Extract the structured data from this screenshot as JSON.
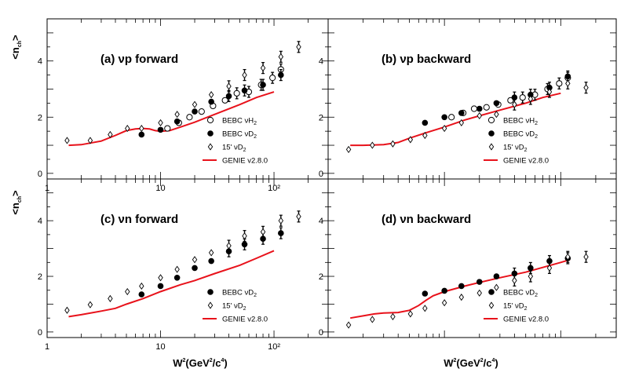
{
  "figure": {
    "y_axis_title": "<n",
    "y_axis_title_sub": "ch",
    "y_axis_title_end": ">",
    "x_axis_title": "W",
    "x_axis_title_sup": "2",
    "x_axis_title_rest": "(GeV",
    "x_axis_title_sup2": "2",
    "x_axis_title_rest2": "/c",
    "x_axis_title_sup3": "4",
    "x_axis_title_end": ")"
  },
  "legend_labels": {
    "bebc_h2": "BEBC νH",
    "bebc_d2": "BEBC νD",
    "ft15_d2": "15' νD",
    "sub2": "2",
    "genie": "GENIE v2.8.0"
  },
  "chart_data": [
    {
      "type": "scatter",
      "title": "(a) νp forward",
      "xscale": "log",
      "xlim": [
        1,
        300
      ],
      "ylim": [
        -0.2,
        5.5
      ],
      "yticks": [
        0,
        2,
        4
      ],
      "xticks": [
        1,
        10,
        100
      ],
      "xtick_labels": [
        "1",
        "10",
        "10²"
      ],
      "series": [
        {
          "name": "BEBC νH2",
          "marker": "open-circle",
          "points": [
            [
              11.5,
              1.6
            ],
            [
              14.5,
              1.8
            ],
            [
              18,
              2.0
            ],
            [
              23,
              2.2
            ],
            [
              29,
              2.4
            ],
            [
              37,
              2.6
            ],
            [
              47,
              2.85
            ],
            [
              60,
              2.9
            ],
            [
              77,
              3.15
            ],
            [
              97,
              3.4
            ],
            [
              115,
              3.7
            ]
          ]
        },
        {
          "name": "BEBC νD2",
          "marker": "filled-circle",
          "points": [
            [
              6.8,
              1.38
            ],
            [
              10,
              1.55
            ],
            [
              14,
              1.85
            ],
            [
              20,
              2.2
            ],
            [
              28,
              2.55
            ],
            [
              40,
              2.75
            ],
            [
              55,
              2.95
            ],
            [
              80,
              3.15
            ],
            [
              115,
              3.5
            ]
          ]
        },
        {
          "name": "15' νD2",
          "marker": "open-diamond",
          "points": [
            [
              1.5,
              1.17
            ],
            [
              2.4,
              1.17
            ],
            [
              3.6,
              1.38
            ],
            [
              5.1,
              1.6
            ],
            [
              6.8,
              1.6
            ],
            [
              10,
              1.8
            ],
            [
              14,
              2.1
            ],
            [
              20,
              2.45
            ],
            [
              28,
              2.8
            ],
            [
              40,
              3.1
            ],
            [
              55,
              3.5
            ],
            [
              80,
              3.75
            ],
            [
              115,
              4.15
            ],
            [
              165,
              4.5
            ]
          ]
        }
      ],
      "genie": {
        "name": "GENIE v2.8.0",
        "points": [
          [
            1.55,
            1.0
          ],
          [
            2,
            1.02
          ],
          [
            3,
            1.15
          ],
          [
            4,
            1.35
          ],
          [
            5,
            1.52
          ],
          [
            6,
            1.58
          ],
          [
            7,
            1.6
          ],
          [
            8,
            1.58
          ],
          [
            9,
            1.52
          ],
          [
            10,
            1.5
          ],
          [
            12,
            1.52
          ],
          [
            15,
            1.65
          ],
          [
            20,
            1.82
          ],
          [
            30,
            2.1
          ],
          [
            50,
            2.45
          ],
          [
            70,
            2.7
          ],
          [
            100,
            2.9
          ]
        ]
      },
      "legend": [
        "BEBC νH2",
        "BEBC νD2",
        "15' νD2",
        "GENIE v2.8.0"
      ]
    },
    {
      "type": "scatter",
      "title": "(b) νp backward",
      "xscale": "log",
      "xlim": [
        1,
        300
      ],
      "ylim": [
        -0.2,
        5.5
      ],
      "yticks": [
        0,
        2,
        4
      ],
      "xticks": [
        1,
        10,
        100
      ],
      "xtick_labels": [],
      "series": [
        {
          "name": "BEBC νH2",
          "marker": "open-circle",
          "points": [
            [
              11.5,
              2.0
            ],
            [
              14.5,
              2.15
            ],
            [
              18,
              2.3
            ],
            [
              23,
              2.35
            ],
            [
              29,
              2.45
            ],
            [
              37,
              2.6
            ],
            [
              47,
              2.7
            ],
            [
              60,
              2.8
            ],
            [
              77,
              3.0
            ],
            [
              97,
              3.2
            ],
            [
              115,
              3.4
            ]
          ]
        },
        {
          "name": "BEBC νD2",
          "marker": "filled-circle",
          "points": [
            [
              6.8,
              1.8
            ],
            [
              10,
              2.0
            ],
            [
              14,
              2.15
            ],
            [
              20,
              2.3
            ],
            [
              28,
              2.5
            ],
            [
              40,
              2.7
            ],
            [
              55,
              2.8
            ],
            [
              80,
              3.05
            ],
            [
              115,
              3.45
            ]
          ]
        },
        {
          "name": "15' νD2",
          "marker": "open-diamond",
          "points": [
            [
              1.5,
              0.85
            ],
            [
              2.4,
              1.0
            ],
            [
              3.6,
              1.05
            ],
            [
              5.1,
              1.2
            ],
            [
              6.8,
              1.35
            ],
            [
              10,
              1.6
            ],
            [
              14,
              1.8
            ],
            [
              20,
              2.05
            ],
            [
              28,
              2.1
            ],
            [
              40,
              2.45
            ],
            [
              55,
              2.65
            ],
            [
              80,
              2.9
            ],
            [
              115,
              3.2
            ],
            [
              165,
              3.05
            ]
          ]
        }
      ],
      "genie": {
        "name": "GENIE v2.8.0",
        "points": [
          [
            1.55,
            1.0
          ],
          [
            2,
            1.0
          ],
          [
            3,
            1.02
          ],
          [
            4,
            1.1
          ],
          [
            5,
            1.25
          ],
          [
            7,
            1.45
          ],
          [
            10,
            1.65
          ],
          [
            15,
            1.9
          ],
          [
            20,
            2.05
          ],
          [
            30,
            2.25
          ],
          [
            50,
            2.5
          ],
          [
            70,
            2.7
          ],
          [
            100,
            2.85
          ]
        ]
      },
      "legend": [
        "BEBC νH2",
        "BEBC νD2",
        "15' νD2",
        "GENIE v2.8.0"
      ]
    },
    {
      "type": "scatter",
      "title": "(c) νn forward",
      "xscale": "log",
      "xlim": [
        1,
        300
      ],
      "ylim": [
        -0.2,
        5.5
      ],
      "yticks": [
        0,
        2,
        4
      ],
      "xticks": [
        1,
        10,
        100
      ],
      "xtick_labels": [
        "1",
        "10",
        "10²"
      ],
      "series": [
        {
          "name": "BEBC νD2",
          "marker": "filled-circle",
          "points": [
            [
              6.8,
              1.35
            ],
            [
              10,
              1.65
            ],
            [
              14,
              1.95
            ],
            [
              20,
              2.3
            ],
            [
              28,
              2.55
            ],
            [
              40,
              2.9
            ],
            [
              55,
              3.15
            ],
            [
              80,
              3.35
            ],
            [
              115,
              3.55
            ]
          ]
        },
        {
          "name": "15' νD2",
          "marker": "open-diamond",
          "points": [
            [
              1.5,
              0.78
            ],
            [
              2.4,
              0.98
            ],
            [
              3.6,
              1.2
            ],
            [
              5.1,
              1.45
            ],
            [
              6.8,
              1.65
            ],
            [
              10,
              1.95
            ],
            [
              14,
              2.25
            ],
            [
              20,
              2.6
            ],
            [
              28,
              2.85
            ],
            [
              40,
              3.1
            ],
            [
              55,
              3.45
            ],
            [
              80,
              3.6
            ],
            [
              115,
              4.0
            ],
            [
              165,
              4.15
            ]
          ]
        }
      ],
      "genie": {
        "name": "GENIE v2.8.0",
        "points": [
          [
            1.55,
            0.55
          ],
          [
            2,
            0.62
          ],
          [
            3,
            0.75
          ],
          [
            4,
            0.85
          ],
          [
            5,
            1.0
          ],
          [
            7,
            1.2
          ],
          [
            10,
            1.45
          ],
          [
            15,
            1.7
          ],
          [
            20,
            1.85
          ],
          [
            30,
            2.1
          ],
          [
            50,
            2.4
          ],
          [
            70,
            2.65
          ],
          [
            100,
            2.92
          ]
        ]
      },
      "legend": [
        "BEBC νD2",
        "15' νD2",
        "GENIE v2.8.0"
      ]
    },
    {
      "type": "scatter",
      "title": "(d) νn backward",
      "xscale": "log",
      "xlim": [
        1,
        300
      ],
      "ylim": [
        -0.2,
        5.5
      ],
      "yticks": [
        0,
        2,
        4
      ],
      "xticks": [
        1,
        10,
        100
      ],
      "xtick_labels": [],
      "series": [
        {
          "name": "BEBC νD2",
          "marker": "filled-circle",
          "points": [
            [
              6.8,
              1.38
            ],
            [
              10,
              1.48
            ],
            [
              14,
              1.65
            ],
            [
              20,
              1.8
            ],
            [
              28,
              2.0
            ],
            [
              40,
              2.1
            ],
            [
              55,
              2.3
            ],
            [
              80,
              2.55
            ],
            [
              115,
              2.65
            ]
          ]
        },
        {
          "name": "15' νD2",
          "marker": "open-diamond",
          "points": [
            [
              1.5,
              0.25
            ],
            [
              2.4,
              0.45
            ],
            [
              3.6,
              0.55
            ],
            [
              5.1,
              0.65
            ],
            [
              6.8,
              0.85
            ],
            [
              10,
              1.05
            ],
            [
              14,
              1.25
            ],
            [
              20,
              1.4
            ],
            [
              28,
              1.6
            ],
            [
              40,
              1.85
            ],
            [
              55,
              2.0
            ],
            [
              80,
              2.3
            ],
            [
              115,
              2.7
            ],
            [
              165,
              2.7
            ]
          ]
        }
      ],
      "genie": {
        "name": "GENIE v2.8.0",
        "points": [
          [
            1.55,
            0.5
          ],
          [
            2,
            0.58
          ],
          [
            2.5,
            0.65
          ],
          [
            3,
            0.68
          ],
          [
            4,
            0.7
          ],
          [
            5,
            0.78
          ],
          [
            6,
            0.95
          ],
          [
            7,
            1.15
          ],
          [
            8,
            1.3
          ],
          [
            10,
            1.45
          ],
          [
            15,
            1.65
          ],
          [
            20,
            1.78
          ],
          [
            30,
            1.95
          ],
          [
            50,
            2.15
          ],
          [
            70,
            2.32
          ],
          [
            100,
            2.5
          ],
          [
            120,
            2.6
          ]
        ]
      },
      "legend": [
        "BEBC νD2",
        "15' νD2",
        "GENIE v2.8.0"
      ]
    }
  ],
  "colors": {
    "genie": "#e8121b",
    "markers": "#000000"
  }
}
